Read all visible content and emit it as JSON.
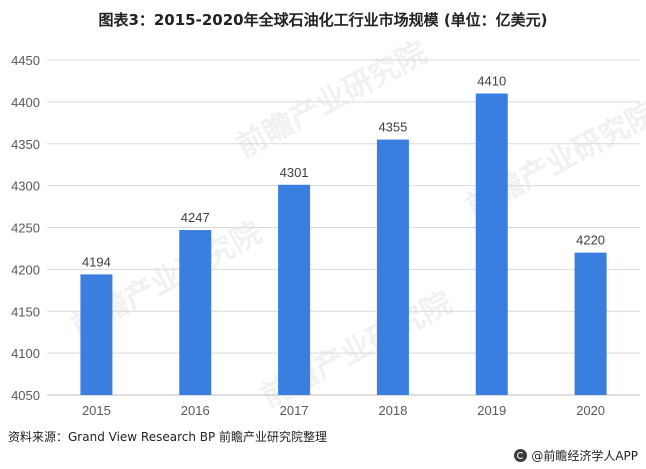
{
  "title": "图表3：2015-2020年全球石油化工行业市场规模 (单位：亿美元)",
  "source": "资料来源：Grand View Research BP 前瞻产业研究院整理",
  "brand": "@前瞻经济学人APP",
  "watermark_text": "前瞻产业研究院",
  "colors": {
    "bar": "#3a7fe0",
    "grid": "#d9d9d9",
    "axis_text": "#595959"
  },
  "chart_data": {
    "type": "bar",
    "categories": [
      "2015",
      "2016",
      "2017",
      "2018",
      "2019",
      "2020"
    ],
    "values": [
      4194,
      4247,
      4301,
      4355,
      4410,
      4220
    ],
    "title": "图表3：2015-2020年全球石油化工行业市场规模 (单位：亿美元)",
    "xlabel": "",
    "ylabel": "",
    "ylim": [
      4050,
      4450
    ],
    "yticks": [
      4050,
      4100,
      4150,
      4200,
      4250,
      4300,
      4350,
      4400,
      4450
    ],
    "data_labels": true,
    "grid": true,
    "legend": "none"
  }
}
